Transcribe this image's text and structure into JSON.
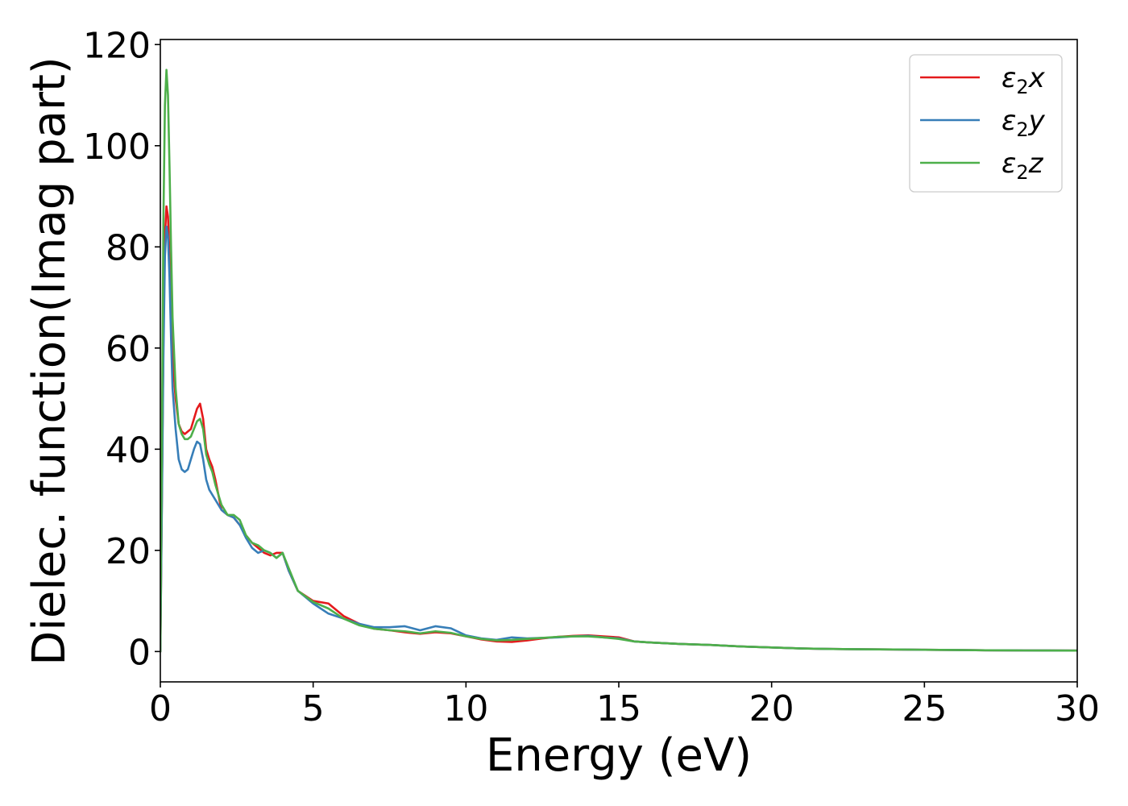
{
  "chart_data": {
    "type": "line",
    "title": "",
    "xlabel": "Energy (eV)",
    "ylabel": "Dielec. function(Imag part)",
    "xlim": [
      0,
      30
    ],
    "ylim": [
      -6,
      121
    ],
    "xticks": [
      0,
      5,
      10,
      15,
      20,
      25,
      30
    ],
    "yticks": [
      0,
      20,
      40,
      60,
      80,
      100,
      120
    ],
    "grid": false,
    "legend_position": "top-right",
    "series": [
      {
        "name": "x",
        "label_prefix": "ε",
        "label_sub": "2",
        "color": "#e41a1c",
        "x": [
          0.0,
          0.05,
          0.1,
          0.15,
          0.2,
          0.25,
          0.3,
          0.35,
          0.4,
          0.5,
          0.6,
          0.7,
          0.8,
          0.9,
          1.0,
          1.1,
          1.2,
          1.3,
          1.4,
          1.5,
          1.6,
          1.7,
          1.8,
          2.0,
          2.2,
          2.4,
          2.6,
          2.8,
          3.0,
          3.2,
          3.4,
          3.6,
          3.8,
          4.0,
          4.2,
          4.5,
          5.0,
          5.5,
          6.0,
          6.5,
          7.0,
          7.5,
          8.0,
          8.5,
          9.0,
          9.5,
          10.0,
          10.5,
          11.0,
          11.5,
          12.0,
          12.5,
          13.0,
          13.5,
          14.0,
          14.5,
          15.0,
          15.5,
          16.0,
          17.0,
          18.0,
          19.0,
          20.0,
          21.0,
          22.0,
          23.0,
          24.0,
          25.0,
          26.0,
          27.0,
          28.0,
          29.0,
          30.0
        ],
        "values": [
          0,
          30,
          62,
          82,
          88,
          86,
          78,
          67,
          58,
          50,
          45,
          43.5,
          43,
          43.5,
          44,
          46,
          48,
          49,
          46,
          40,
          38,
          36.5,
          34,
          28,
          27,
          26.5,
          25,
          23,
          21.5,
          20.5,
          19.5,
          19,
          19.5,
          19.5,
          16,
          12,
          10,
          9.5,
          7,
          5.5,
          4.5,
          4.2,
          3.8,
          3.5,
          3.8,
          3.6,
          3.0,
          2.4,
          2.0,
          1.9,
          2.2,
          2.6,
          2.9,
          3.1,
          3.2,
          3.0,
          2.8,
          2.0,
          1.8,
          1.5,
          1.3,
          1.0,
          0.8,
          0.6,
          0.5,
          0.45,
          0.4,
          0.35,
          0.3,
          0.25,
          0.22,
          0.2,
          0.18
        ]
      },
      {
        "name": "y",
        "label_prefix": "ε",
        "label_sub": "2",
        "color": "#377eb8",
        "x": [
          0.0,
          0.05,
          0.1,
          0.15,
          0.2,
          0.25,
          0.3,
          0.35,
          0.4,
          0.5,
          0.6,
          0.7,
          0.8,
          0.9,
          1.0,
          1.1,
          1.2,
          1.3,
          1.4,
          1.5,
          1.6,
          1.7,
          1.8,
          2.0,
          2.2,
          2.4,
          2.6,
          2.8,
          3.0,
          3.2,
          3.4,
          3.6,
          3.8,
          4.0,
          4.2,
          4.5,
          5.0,
          5.5,
          6.0,
          6.5,
          7.0,
          7.5,
          8.0,
          8.5,
          9.0,
          9.5,
          10.0,
          10.5,
          11.0,
          11.5,
          12.0,
          12.5,
          13.0,
          13.5,
          14.0,
          14.5,
          15.0,
          15.5,
          16.0,
          17.0,
          18.0,
          19.0,
          20.0,
          21.0,
          22.0,
          23.0,
          24.0,
          25.0,
          26.0,
          27.0,
          28.0,
          29.0,
          30.0
        ],
        "values": [
          0,
          28,
          58,
          78,
          84,
          82,
          74,
          62,
          52,
          44,
          38,
          36,
          35.5,
          36,
          38,
          40,
          41.5,
          41,
          38,
          34,
          32,
          31,
          30,
          28,
          27,
          26.5,
          25,
          22.5,
          20.5,
          19.5,
          20,
          19.5,
          18.5,
          19.5,
          16,
          12,
          9.5,
          7.5,
          6.5,
          5.5,
          4.8,
          4.8,
          5.0,
          4.2,
          5.0,
          4.6,
          3.2,
          2.6,
          2.3,
          2.8,
          2.6,
          2.7,
          2.8,
          3.0,
          3.1,
          2.8,
          2.6,
          2.0,
          1.8,
          1.5,
          1.3,
          1.0,
          0.8,
          0.6,
          0.5,
          0.45,
          0.4,
          0.35,
          0.3,
          0.25,
          0.22,
          0.2,
          0.18
        ]
      },
      {
        "name": "z",
        "label_prefix": "ε",
        "label_sub": "2",
        "color": "#4daf4a",
        "x": [
          0.0,
          0.05,
          0.1,
          0.15,
          0.2,
          0.25,
          0.3,
          0.35,
          0.4,
          0.5,
          0.6,
          0.7,
          0.8,
          0.9,
          1.0,
          1.1,
          1.2,
          1.3,
          1.4,
          1.5,
          1.6,
          1.7,
          1.8,
          2.0,
          2.2,
          2.4,
          2.6,
          2.8,
          3.0,
          3.2,
          3.4,
          3.6,
          3.8,
          4.0,
          4.2,
          4.5,
          5.0,
          5.5,
          6.0,
          6.5,
          7.0,
          7.5,
          8.0,
          8.5,
          9.0,
          9.5,
          10.0,
          10.5,
          11.0,
          11.5,
          12.0,
          12.5,
          13.0,
          13.5,
          14.0,
          14.5,
          15.0,
          15.5,
          16.0,
          17.0,
          18.0,
          19.0,
          20.0,
          21.0,
          22.0,
          23.0,
          24.0,
          25.0,
          26.0,
          27.0,
          28.0,
          29.0,
          30.0
        ],
        "values": [
          0,
          40,
          85,
          108,
          115,
          110,
          96,
          80,
          66,
          52,
          45,
          43,
          42,
          42,
          42.5,
          44,
          45.5,
          46,
          44,
          39,
          37,
          35.5,
          33,
          29,
          27,
          27,
          26,
          23,
          21.5,
          21,
          20,
          19.5,
          18.5,
          19.5,
          16.5,
          12,
          9.8,
          8.5,
          6.5,
          5.2,
          4.5,
          4.2,
          4.0,
          3.6,
          4.0,
          3.7,
          3.0,
          2.5,
          2.2,
          2.3,
          2.5,
          2.7,
          2.9,
          3.0,
          3.0,
          2.8,
          2.5,
          2.0,
          1.8,
          1.5,
          1.3,
          1.0,
          0.8,
          0.6,
          0.5,
          0.45,
          0.4,
          0.35,
          0.3,
          0.25,
          0.22,
          0.2,
          0.18
        ]
      }
    ]
  }
}
